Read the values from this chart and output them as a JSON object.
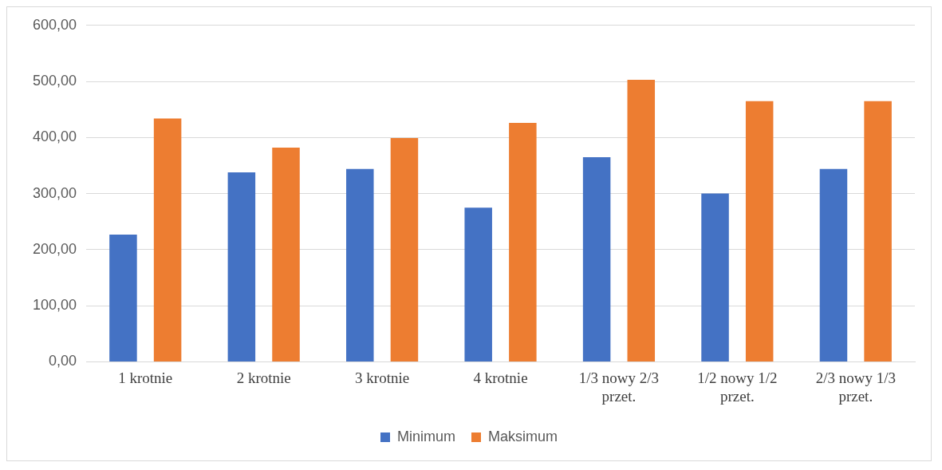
{
  "chart_data": {
    "type": "bar",
    "categories": [
      "1 krotnie",
      "2 krotnie",
      "3 krotnie",
      "4 krotnie",
      "1/3 nowy 2/3 przet.",
      "1/2 nowy 1/2 przet.",
      "2/3 nowy 1/3 przet."
    ],
    "series": [
      {
        "name": "Minimum",
        "color": "#4472c4",
        "values": [
          227,
          338,
          344,
          275,
          365,
          300,
          344
        ]
      },
      {
        "name": "Maksimum",
        "color": "#ed7d31",
        "values": [
          434,
          382,
          399,
          426,
          503,
          465,
          465
        ]
      }
    ],
    "ylim": [
      0,
      600
    ],
    "yticks": [
      {
        "value": 0,
        "label": "0,00"
      },
      {
        "value": 100,
        "label": "100,00"
      },
      {
        "value": 200,
        "label": "200,00"
      },
      {
        "value": 300,
        "label": "300,00"
      },
      {
        "value": 400,
        "label": "400,00"
      },
      {
        "value": 500,
        "label": "500,00"
      },
      {
        "value": 600,
        "label": "600,00"
      }
    ],
    "grid": "y",
    "legend": "bottom"
  }
}
